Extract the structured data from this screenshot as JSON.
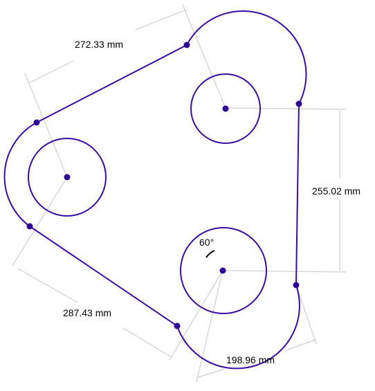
{
  "colors": {
    "profile": "#3a0ca3",
    "point": "#2d0496",
    "dimension": "#cfcfcf",
    "text": "#000000",
    "background": "#ffffff"
  },
  "dimensions": {
    "top_left": "272.33 mm",
    "right": "255.02 mm",
    "bottom_left": "287.43 mm",
    "bottom_right": "198.96 mm",
    "angle": "60°"
  }
}
